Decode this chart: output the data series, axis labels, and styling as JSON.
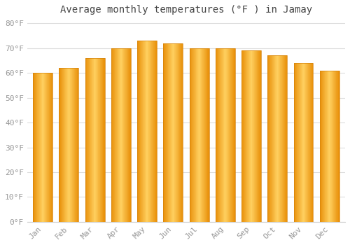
{
  "title": "Average monthly temperatures (°F ) in Jamay",
  "months": [
    "Jan",
    "Feb",
    "Mar",
    "Apr",
    "May",
    "Jun",
    "Jul",
    "Aug",
    "Sep",
    "Oct",
    "Nov",
    "Dec"
  ],
  "values": [
    60,
    62,
    66,
    70,
    73,
    72,
    70,
    70,
    69,
    67,
    64,
    61
  ],
  "bar_color_edge": "#F5A623",
  "bar_color_mid": "#FFD966",
  "bar_color_outer": "#E8830A",
  "background_color": "#FFFFFF",
  "plot_bg_color": "#FFFFFF",
  "grid_color": "#DDDDDD",
  "ylim": [
    0,
    82
  ],
  "yticks": [
    0,
    10,
    20,
    30,
    40,
    50,
    60,
    70,
    80
  ],
  "title_fontsize": 10,
  "tick_fontsize": 8,
  "bar_width": 0.75
}
